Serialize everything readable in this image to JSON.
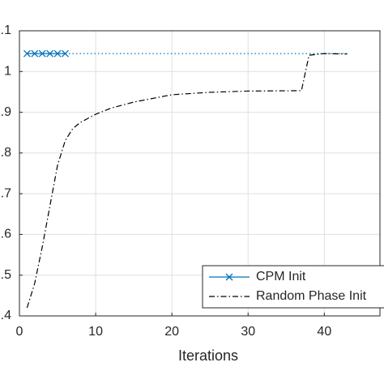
{
  "chart_data": {
    "type": "line",
    "x_label": "Iterations",
    "xlim": [
      0,
      47.3
    ],
    "xticks": [
      0,
      10,
      20,
      30,
      40
    ],
    "ylim": [
      0.4,
      1.1
    ],
    "yticks": [
      {
        "value": 0.4,
        "label": ".4"
      },
      {
        "value": 0.5,
        "label": ".5"
      },
      {
        "value": 0.6,
        "label": ".6"
      },
      {
        "value": 0.7,
        "label": ".7"
      },
      {
        "value": 0.8,
        "label": ".8"
      },
      {
        "value": 0.9,
        "label": ".9"
      },
      1,
      {
        "value": 1.1,
        "label": ".1"
      }
    ],
    "grid": true,
    "legend": "lower right",
    "series": [
      {
        "name": "CPM Init",
        "color": "#0072bd",
        "x": [
          1,
          2,
          3,
          4,
          5,
          6
        ],
        "values": [
          1.044,
          1.044,
          1.044,
          1.044,
          1.044,
          1.044
        ]
      },
      {
        "name": "Random Phase Init",
        "color": "#000000",
        "x": [
          1,
          2,
          3,
          4,
          5,
          6,
          7,
          8,
          10,
          12,
          15,
          20,
          25,
          30,
          37,
          38,
          40,
          43
        ],
        "values": [
          0.42,
          0.48,
          0.57,
          0.67,
          0.77,
          0.83,
          0.86,
          0.875,
          0.895,
          0.91,
          0.925,
          0.943,
          0.949,
          0.952,
          0.953,
          1.04,
          1.044,
          1.043
        ]
      }
    ],
    "reference_line": {
      "color": "#0072bd",
      "x": [
        6,
        43
      ],
      "values": [
        1.044,
        1.044
      ]
    }
  }
}
